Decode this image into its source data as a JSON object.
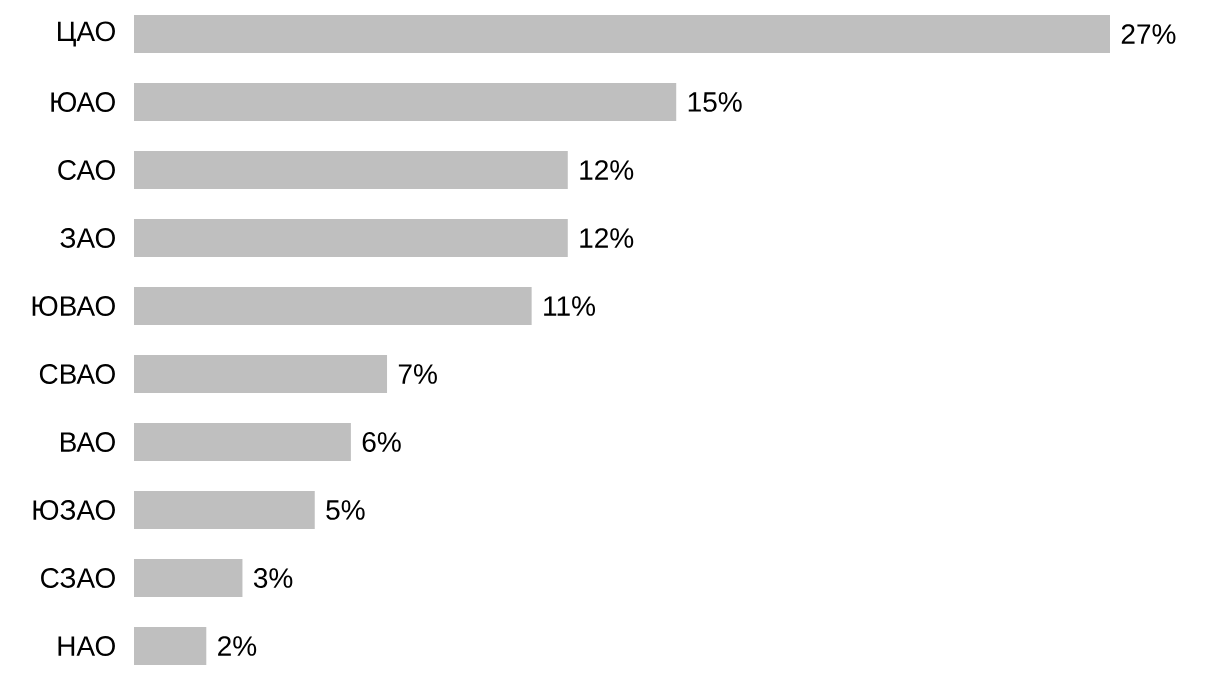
{
  "chart_data": {
    "type": "bar",
    "orientation": "horizontal",
    "categories": [
      "ЦАО",
      "ЮАО",
      "САО",
      "ЗАО",
      "ЮВАО",
      "СВАО",
      "ВАО",
      "ЮЗАО",
      "СЗАО",
      "НАО"
    ],
    "values": [
      27,
      15,
      12,
      12,
      11,
      7,
      6,
      5,
      3,
      2
    ],
    "value_labels": [
      "27%",
      "15%",
      "12%",
      "12%",
      "11%",
      "7%",
      "6%",
      "5%",
      "3%",
      "2%"
    ],
    "color": "#bfbfbf"
  }
}
